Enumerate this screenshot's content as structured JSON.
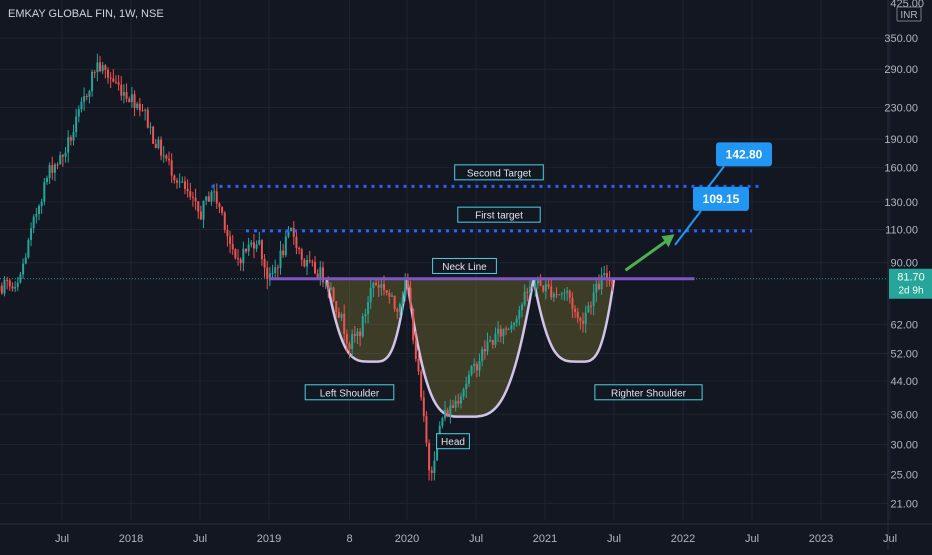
{
  "header": {
    "symbol_title": "EMKAY GLOBAL FIN, 1W, NSE"
  },
  "colors": {
    "background": "#131722",
    "up": "#26a69a",
    "down": "#ef5350",
    "text": "#b2b5be",
    "grid": "#1f2330",
    "dotted": "#2962ff",
    "neck": "#7e57c2",
    "pattern_stroke": "#d1c4e9",
    "callout": "#2196f3",
    "arrow": "#4caf50",
    "price_badge": "#26a69a"
  },
  "chart_data": {
    "type": "candlestick",
    "title": "EMKAY GLOBAL FIN, 1W, NSE",
    "yscale": "log",
    "ylim": [
      19,
      425
    ],
    "y_ticks": [
      21,
      25,
      30,
      36,
      44,
      52,
      62,
      90,
      110,
      130,
      160,
      190,
      230,
      290,
      350
    ],
    "y_top_label": "425.00",
    "currency_label": "INR",
    "x_labels": [
      "Jul",
      "2018",
      "Jul",
      "2019",
      "8",
      "2020",
      "Jul",
      "2021",
      "Jul",
      "2022",
      "Jul",
      "2023",
      "Jul"
    ],
    "x_label_dates": [
      "2017-07",
      "2018-01",
      "2018-07",
      "2019-01",
      "2019-08",
      "2020-01",
      "2020-07",
      "2021-01",
      "2021-07",
      "2022-01",
      "2022-07",
      "2023-01",
      "2023-07"
    ],
    "x_range": [
      "2016-11",
      "2023-08"
    ],
    "price_path": [
      [
        "2016-11",
        58
      ],
      [
        "2017-02",
        80
      ],
      [
        "2017-03",
        75
      ],
      [
        "2017-05",
        130
      ],
      [
        "2017-06",
        160
      ],
      [
        "2017-07",
        170
      ],
      [
        "2017-08",
        200
      ],
      [
        "2017-10",
        300
      ],
      [
        "2017-12",
        260
      ],
      [
        "2018-02",
        230
      ],
      [
        "2018-03",
        190
      ],
      [
        "2018-05",
        150
      ],
      [
        "2018-07",
        120
      ],
      [
        "2018-08",
        140
      ],
      [
        "2018-09",
        120
      ],
      [
        "2018-10",
        90
      ],
      [
        "2018-12",
        105
      ],
      [
        "2019-01",
        80
      ],
      [
        "2019-03",
        110
      ],
      [
        "2019-04",
        90
      ],
      [
        "2019-06",
        82
      ],
      [
        "2019-07",
        68
      ],
      [
        "2019-08",
        55
      ],
      [
        "2019-09",
        60
      ],
      [
        "2019-10",
        80
      ],
      [
        "2019-11",
        78
      ],
      [
        "2019-12",
        68
      ],
      [
        "2020-01",
        80
      ],
      [
        "2020-02",
        45
      ],
      [
        "2020-03",
        25
      ],
      [
        "2020-04",
        35
      ],
      [
        "2020-05",
        38
      ],
      [
        "2020-08",
        55
      ],
      [
        "2020-10",
        62
      ],
      [
        "2020-12",
        80
      ],
      [
        "2021-02",
        75
      ],
      [
        "2021-03",
        75
      ],
      [
        "2021-04",
        62
      ],
      [
        "2021-05",
        72
      ],
      [
        "2021-06",
        82
      ],
      [
        "2021-07",
        81.7
      ]
    ],
    "price_lines": [
      {
        "name": "Second Target",
        "value": 142.8,
        "from": "2018-08",
        "to": "2022-08"
      },
      {
        "name": "First target",
        "value": 109.15,
        "from": "2018-11",
        "to": "2022-07"
      },
      {
        "name": "Neck Line",
        "value": 81.7,
        "from": "2019-01",
        "to": "2022-02"
      }
    ],
    "callouts": [
      {
        "label": "142.80",
        "value": 142.8,
        "date": "2022-03"
      },
      {
        "label": "109.15",
        "value": 109.15,
        "date": "2022-01"
      }
    ],
    "annotations": [
      {
        "label": "Second Target",
        "date": "2020-09",
        "value": 155
      },
      {
        "label": "First target",
        "date": "2020-09",
        "value": 120
      },
      {
        "label": "Neck Line",
        "date": "2020-06",
        "value": 88
      },
      {
        "label": "Left Shoulder",
        "date": "2019-08",
        "value": 41
      },
      {
        "label": "Head",
        "date": "2020-05",
        "value": 30.5
      },
      {
        "label": "Righter Shoulder",
        "date": "2021-10",
        "value": 41
      }
    ],
    "last_price": 81.7,
    "last_price_label": "81.70",
    "time_left_label": "2d 9h"
  }
}
